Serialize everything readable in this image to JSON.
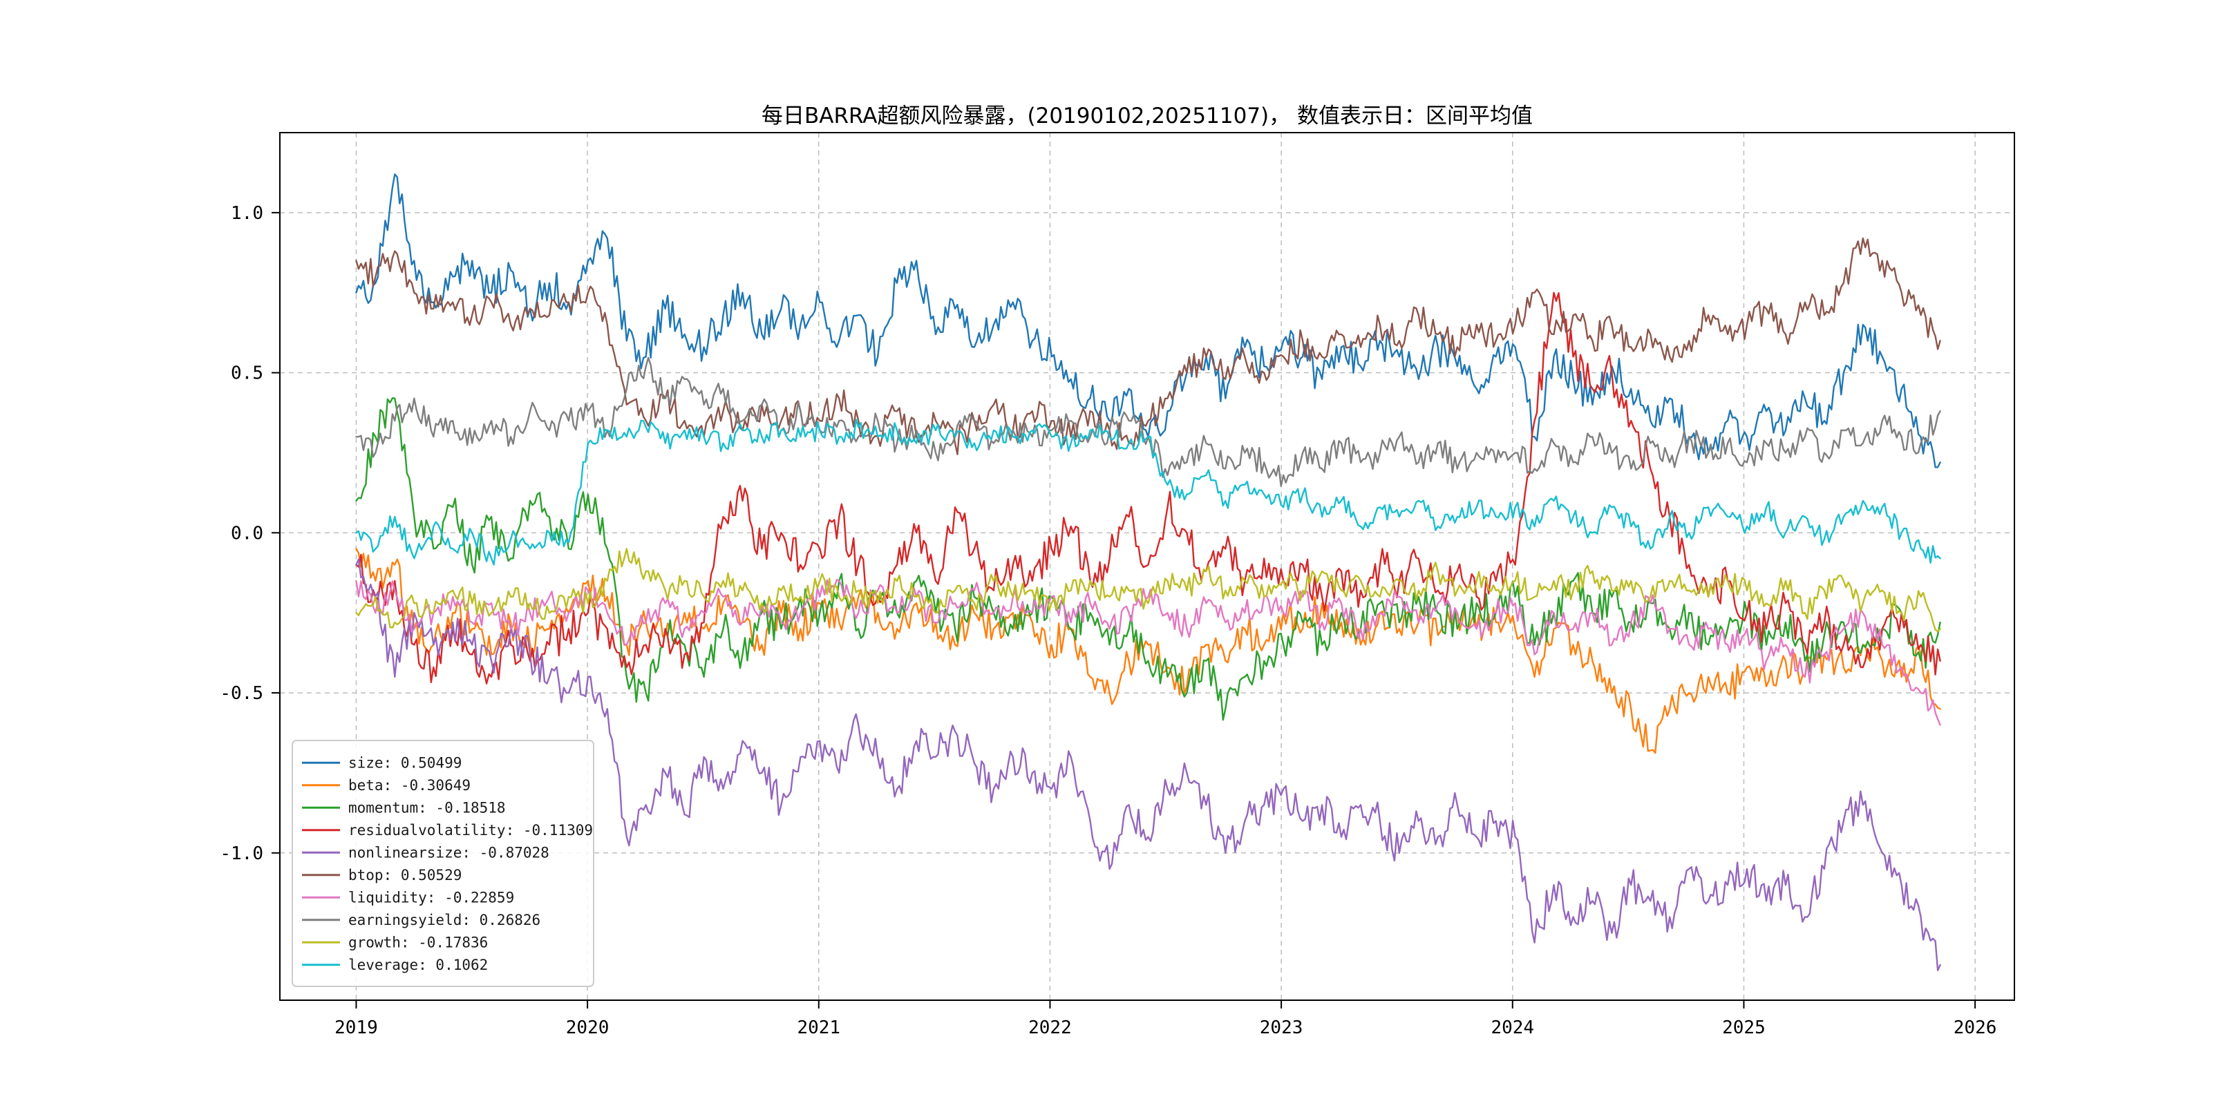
{
  "chart_data": {
    "type": "line",
    "title": "每日BARRA超额风险暴露，(20190102,20251107)，  数值表示日：区间平均值",
    "xlabel": "",
    "ylabel": "",
    "grid": true,
    "grid_style": "dashed",
    "legend_position": "lower-left",
    "xlim": [
      2018.67,
      2026.17
    ],
    "ylim": [
      -1.46,
      1.25
    ],
    "x_range": [
      2019.0,
      2025.849
    ],
    "sampling": "monthly averages read from daily curves",
    "x_ticks": [
      {
        "label": "2019",
        "value": 2019
      },
      {
        "label": "2020",
        "value": 2020
      },
      {
        "label": "2021",
        "value": 2021
      },
      {
        "label": "2022",
        "value": 2022
      },
      {
        "label": "2023",
        "value": 2023
      },
      {
        "label": "2024",
        "value": 2024
      },
      {
        "label": "2025",
        "value": 2025
      },
      {
        "label": "2026",
        "value": 2026
      }
    ],
    "y_ticks": [
      {
        "label": "-1.0",
        "value": -1.0
      },
      {
        "label": "-0.5",
        "value": -0.5
      },
      {
        "label": "0.0",
        "value": 0.0
      },
      {
        "label": "0.5",
        "value": 0.5
      },
      {
        "label": "1.0",
        "value": 1.0
      }
    ],
    "series": [
      {
        "name": "size",
        "mean": 0.50499,
        "label": "size: 0.50499",
        "color": "#1f77b4",
        "noise": 0.055,
        "values": [
          0.75,
          0.78,
          1.12,
          0.85,
          0.72,
          0.8,
          0.85,
          0.75,
          0.82,
          0.7,
          0.78,
          0.72,
          0.85,
          0.92,
          0.6,
          0.55,
          0.7,
          0.62,
          0.58,
          0.68,
          0.75,
          0.62,
          0.7,
          0.65,
          0.72,
          0.6,
          0.68,
          0.55,
          0.78,
          0.85,
          0.62,
          0.7,
          0.58,
          0.65,
          0.72,
          0.6,
          0.55,
          0.48,
          0.42,
          0.35,
          0.45,
          0.3,
          0.38,
          0.5,
          0.55,
          0.42,
          0.58,
          0.52,
          0.6,
          0.55,
          0.48,
          0.58,
          0.52,
          0.6,
          0.55,
          0.48,
          0.58,
          0.52,
          0.45,
          0.55,
          0.58,
          0.3,
          0.55,
          0.48,
          0.4,
          0.52,
          0.45,
          0.35,
          0.42,
          0.3,
          0.25,
          0.35,
          0.3,
          0.38,
          0.32,
          0.42,
          0.35,
          0.5,
          0.65,
          0.55,
          0.45,
          0.3,
          0.22
        ]
      },
      {
        "name": "beta",
        "mean": -0.30649,
        "label": "beta: -0.30649",
        "color": "#ff7f0e",
        "noise": 0.05,
        "values": [
          -0.05,
          -0.15,
          -0.1,
          -0.3,
          -0.35,
          -0.25,
          -0.3,
          -0.38,
          -0.28,
          -0.35,
          -0.3,
          -0.25,
          -0.15,
          -0.2,
          -0.35,
          -0.28,
          -0.32,
          -0.25,
          -0.3,
          -0.22,
          -0.28,
          -0.35,
          -0.25,
          -0.3,
          -0.22,
          -0.28,
          -0.2,
          -0.25,
          -0.3,
          -0.22,
          -0.28,
          -0.35,
          -0.25,
          -0.3,
          -0.25,
          -0.28,
          -0.35,
          -0.3,
          -0.45,
          -0.5,
          -0.4,
          -0.35,
          -0.42,
          -0.48,
          -0.35,
          -0.4,
          -0.3,
          -0.35,
          -0.25,
          -0.3,
          -0.22,
          -0.28,
          -0.35,
          -0.25,
          -0.3,
          -0.28,
          -0.32,
          -0.25,
          -0.3,
          -0.28,
          -0.3,
          -0.45,
          -0.3,
          -0.35,
          -0.4,
          -0.5,
          -0.55,
          -0.68,
          -0.55,
          -0.5,
          -0.45,
          -0.5,
          -0.42,
          -0.48,
          -0.4,
          -0.45,
          -0.38,
          -0.42,
          -0.35,
          -0.4,
          -0.45,
          -0.38,
          -0.55
        ]
      },
      {
        "name": "momentum",
        "mean": -0.18518,
        "label": "momentum: -0.18518",
        "color": "#2ca02c",
        "noise": 0.055,
        "values": [
          0.1,
          0.3,
          0.42,
          0.05,
          -0.05,
          0.08,
          -0.1,
          0.05,
          -0.08,
          0.1,
          0.05,
          -0.05,
          0.12,
          -0.05,
          -0.45,
          -0.5,
          -0.3,
          -0.35,
          -0.45,
          -0.3,
          -0.38,
          -0.25,
          -0.3,
          -0.2,
          -0.25,
          -0.15,
          -0.3,
          -0.2,
          -0.25,
          -0.15,
          -0.25,
          -0.3,
          -0.2,
          -0.25,
          -0.3,
          -0.25,
          -0.2,
          -0.3,
          -0.25,
          -0.35,
          -0.3,
          -0.4,
          -0.45,
          -0.5,
          -0.4,
          -0.55,
          -0.45,
          -0.4,
          -0.35,
          -0.28,
          -0.35,
          -0.25,
          -0.3,
          -0.22,
          -0.28,
          -0.2,
          -0.25,
          -0.3,
          -0.22,
          -0.25,
          -0.2,
          -0.35,
          -0.25,
          -0.15,
          -0.25,
          -0.2,
          -0.28,
          -0.22,
          -0.3,
          -0.25,
          -0.35,
          -0.3,
          -0.25,
          -0.35,
          -0.28,
          -0.4,
          -0.32,
          -0.28,
          -0.35,
          -0.3,
          -0.25,
          -0.4,
          -0.28
        ]
      },
      {
        "name": "residualvolatility",
        "mean": -0.11309,
        "label": "residualvolatility: -0.11309",
        "color": "#d62728",
        "noise": 0.06,
        "values": [
          -0.1,
          -0.2,
          -0.15,
          -0.35,
          -0.42,
          -0.3,
          -0.38,
          -0.45,
          -0.35,
          -0.4,
          -0.35,
          -0.3,
          -0.25,
          -0.3,
          -0.42,
          -0.35,
          -0.3,
          -0.38,
          -0.28,
          0.05,
          0.1,
          -0.05,
          0.0,
          -0.1,
          -0.05,
          0.05,
          -0.1,
          -0.2,
          -0.1,
          0.0,
          -0.15,
          0.08,
          -0.05,
          -0.18,
          -0.1,
          -0.15,
          -0.05,
          0.02,
          -0.15,
          -0.08,
          0.05,
          -0.1,
          0.08,
          0.0,
          -0.12,
          -0.05,
          -0.15,
          -0.08,
          -0.15,
          -0.1,
          -0.2,
          -0.12,
          -0.18,
          -0.1,
          -0.15,
          -0.08,
          -0.18,
          -0.12,
          -0.2,
          -0.15,
          -0.1,
          0.35,
          0.75,
          0.55,
          0.45,
          0.5,
          0.35,
          0.2,
          0.05,
          -0.1,
          -0.2,
          -0.15,
          -0.25,
          -0.3,
          -0.22,
          -0.35,
          -0.28,
          -0.35,
          -0.42,
          -0.3,
          -0.25,
          -0.35,
          -0.4
        ]
      },
      {
        "name": "nonlinearsize",
        "mean": -0.87028,
        "label": "nonlinearsize: -0.87028",
        "color": "#9467bd",
        "noise": 0.055,
        "values": [
          -0.1,
          -0.2,
          -0.45,
          -0.25,
          -0.35,
          -0.28,
          -0.35,
          -0.4,
          -0.3,
          -0.38,
          -0.45,
          -0.5,
          -0.45,
          -0.55,
          -0.95,
          -0.85,
          -0.75,
          -0.88,
          -0.7,
          -0.8,
          -0.65,
          -0.75,
          -0.85,
          -0.7,
          -0.65,
          -0.75,
          -0.6,
          -0.7,
          -0.8,
          -0.65,
          -0.7,
          -0.62,
          -0.72,
          -0.8,
          -0.7,
          -0.75,
          -0.8,
          -0.7,
          -0.9,
          -1.05,
          -0.85,
          -0.95,
          -0.8,
          -0.75,
          -0.85,
          -1.0,
          -0.9,
          -0.85,
          -0.8,
          -0.9,
          -0.85,
          -0.95,
          -0.85,
          -0.9,
          -1.0,
          -0.9,
          -0.95,
          -0.85,
          -0.95,
          -0.9,
          -0.95,
          -1.28,
          -1.1,
          -1.2,
          -1.15,
          -1.25,
          -1.1,
          -1.15,
          -1.2,
          -1.05,
          -1.15,
          -1.1,
          -1.05,
          -1.15,
          -1.1,
          -1.2,
          -1.05,
          -0.9,
          -0.85,
          -1.0,
          -1.1,
          -1.2,
          -1.35
        ]
      },
      {
        "name": "btop",
        "mean": 0.50529,
        "label": "btop: 0.50529",
        "color": "#8c564b",
        "noise": 0.045,
        "values": [
          0.85,
          0.8,
          0.88,
          0.75,
          0.7,
          0.72,
          0.68,
          0.72,
          0.65,
          0.7,
          0.68,
          0.72,
          0.75,
          0.65,
          0.4,
          0.35,
          0.42,
          0.35,
          0.3,
          0.38,
          0.32,
          0.4,
          0.35,
          0.38,
          0.35,
          0.42,
          0.35,
          0.3,
          0.38,
          0.3,
          0.35,
          0.28,
          0.35,
          0.4,
          0.32,
          0.38,
          0.35,
          0.3,
          0.38,
          0.32,
          0.28,
          0.35,
          0.42,
          0.5,
          0.55,
          0.48,
          0.55,
          0.5,
          0.55,
          0.6,
          0.55,
          0.62,
          0.58,
          0.65,
          0.6,
          0.68,
          0.62,
          0.58,
          0.65,
          0.6,
          0.65,
          0.75,
          0.62,
          0.68,
          0.6,
          0.65,
          0.58,
          0.62,
          0.55,
          0.6,
          0.68,
          0.62,
          0.65,
          0.7,
          0.62,
          0.72,
          0.68,
          0.78,
          0.92,
          0.85,
          0.75,
          0.68,
          0.6
        ]
      },
      {
        "name": "liquidity",
        "mean": -0.22859,
        "label": "liquidity: -0.22859",
        "color": "#e377c2",
        "noise": 0.04,
        "values": [
          -0.15,
          -0.25,
          -0.18,
          -0.3,
          -0.25,
          -0.2,
          -0.28,
          -0.22,
          -0.3,
          -0.25,
          -0.2,
          -0.25,
          -0.18,
          -0.25,
          -0.35,
          -0.28,
          -0.22,
          -0.3,
          -0.25,
          -0.2,
          -0.28,
          -0.22,
          -0.28,
          -0.25,
          -0.2,
          -0.15,
          -0.25,
          -0.18,
          -0.25,
          -0.2,
          -0.28,
          -0.22,
          -0.18,
          -0.25,
          -0.2,
          -0.25,
          -0.2,
          -0.28,
          -0.22,
          -0.3,
          -0.25,
          -0.2,
          -0.25,
          -0.3,
          -0.22,
          -0.28,
          -0.25,
          -0.2,
          -0.25,
          -0.2,
          -0.28,
          -0.22,
          -0.3,
          -0.25,
          -0.2,
          -0.28,
          -0.22,
          -0.25,
          -0.3,
          -0.25,
          -0.22,
          -0.38,
          -0.25,
          -0.3,
          -0.25,
          -0.35,
          -0.28,
          -0.22,
          -0.3,
          -0.35,
          -0.3,
          -0.35,
          -0.3,
          -0.4,
          -0.35,
          -0.45,
          -0.38,
          -0.3,
          -0.25,
          -0.35,
          -0.42,
          -0.5,
          -0.6
        ]
      },
      {
        "name": "earningsyield",
        "mean": 0.26826,
        "label": "earningsyield: 0.26826",
        "color": "#7f7f7f",
        "noise": 0.04,
        "values": [
          0.3,
          0.25,
          0.35,
          0.42,
          0.3,
          0.35,
          0.28,
          0.35,
          0.3,
          0.38,
          0.32,
          0.35,
          0.38,
          0.32,
          0.45,
          0.52,
          0.42,
          0.48,
          0.4,
          0.45,
          0.35,
          0.4,
          0.32,
          0.38,
          0.32,
          0.35,
          0.3,
          0.35,
          0.28,
          0.32,
          0.25,
          0.3,
          0.35,
          0.28,
          0.32,
          0.3,
          0.32,
          0.35,
          0.3,
          0.32,
          0.35,
          0.3,
          0.18,
          0.22,
          0.28,
          0.2,
          0.25,
          0.22,
          0.18,
          0.25,
          0.2,
          0.28,
          0.22,
          0.25,
          0.3,
          0.22,
          0.28,
          0.2,
          0.25,
          0.22,
          0.25,
          0.2,
          0.28,
          0.22,
          0.3,
          0.25,
          0.2,
          0.28,
          0.22,
          0.3,
          0.25,
          0.28,
          0.22,
          0.28,
          0.25,
          0.3,
          0.25,
          0.32,
          0.28,
          0.35,
          0.3,
          0.28,
          0.38
        ]
      },
      {
        "name": "growth",
        "mean": -0.17836,
        "label": "growth: -0.17836",
        "color": "#bcbd22",
        "noise": 0.035,
        "values": [
          -0.25,
          -0.2,
          -0.28,
          -0.22,
          -0.25,
          -0.18,
          -0.22,
          -0.25,
          -0.2,
          -0.22,
          -0.25,
          -0.2,
          -0.22,
          -0.15,
          -0.05,
          -0.12,
          -0.18,
          -0.15,
          -0.2,
          -0.15,
          -0.18,
          -0.22,
          -0.18,
          -0.2,
          -0.15,
          -0.2,
          -0.18,
          -0.22,
          -0.15,
          -0.2,
          -0.25,
          -0.18,
          -0.22,
          -0.15,
          -0.2,
          -0.18,
          -0.22,
          -0.18,
          -0.15,
          -0.2,
          -0.18,
          -0.22,
          -0.15,
          -0.18,
          -0.12,
          -0.18,
          -0.15,
          -0.2,
          -0.15,
          -0.18,
          -0.12,
          -0.18,
          -0.15,
          -0.2,
          -0.15,
          -0.18,
          -0.12,
          -0.18,
          -0.15,
          -0.18,
          -0.15,
          -0.2,
          -0.15,
          -0.18,
          -0.12,
          -0.18,
          -0.15,
          -0.2,
          -0.15,
          -0.18,
          -0.2,
          -0.15,
          -0.18,
          -0.22,
          -0.15,
          -0.25,
          -0.18,
          -0.15,
          -0.22,
          -0.18,
          -0.25,
          -0.2,
          -0.3
        ]
      },
      {
        "name": "leverage",
        "mean": 0.1062,
        "label": "leverage: 0.1062",
        "color": "#17becf",
        "noise": 0.03,
        "values": [
          0.0,
          -0.05,
          0.05,
          -0.08,
          0.02,
          -0.05,
          0.0,
          -0.08,
          -0.02,
          -0.05,
          0.0,
          -0.03,
          0.28,
          0.32,
          0.3,
          0.33,
          0.28,
          0.32,
          0.3,
          0.28,
          0.32,
          0.3,
          0.32,
          0.3,
          0.32,
          0.3,
          0.33,
          0.3,
          0.32,
          0.28,
          0.32,
          0.3,
          0.28,
          0.32,
          0.3,
          0.32,
          0.3,
          0.28,
          0.32,
          0.3,
          0.28,
          0.3,
          0.15,
          0.12,
          0.18,
          0.1,
          0.15,
          0.12,
          0.08,
          0.12,
          0.05,
          0.1,
          0.02,
          0.08,
          0.05,
          0.1,
          0.02,
          0.05,
          0.08,
          0.05,
          0.08,
          0.02,
          0.1,
          0.05,
          0.0,
          0.08,
          0.02,
          -0.05,
          0.05,
          0.0,
          0.08,
          0.05,
          0.02,
          0.08,
          0.0,
          0.05,
          -0.02,
          0.05,
          0.1,
          0.08,
          0.0,
          -0.05,
          -0.08
        ]
      }
    ]
  }
}
